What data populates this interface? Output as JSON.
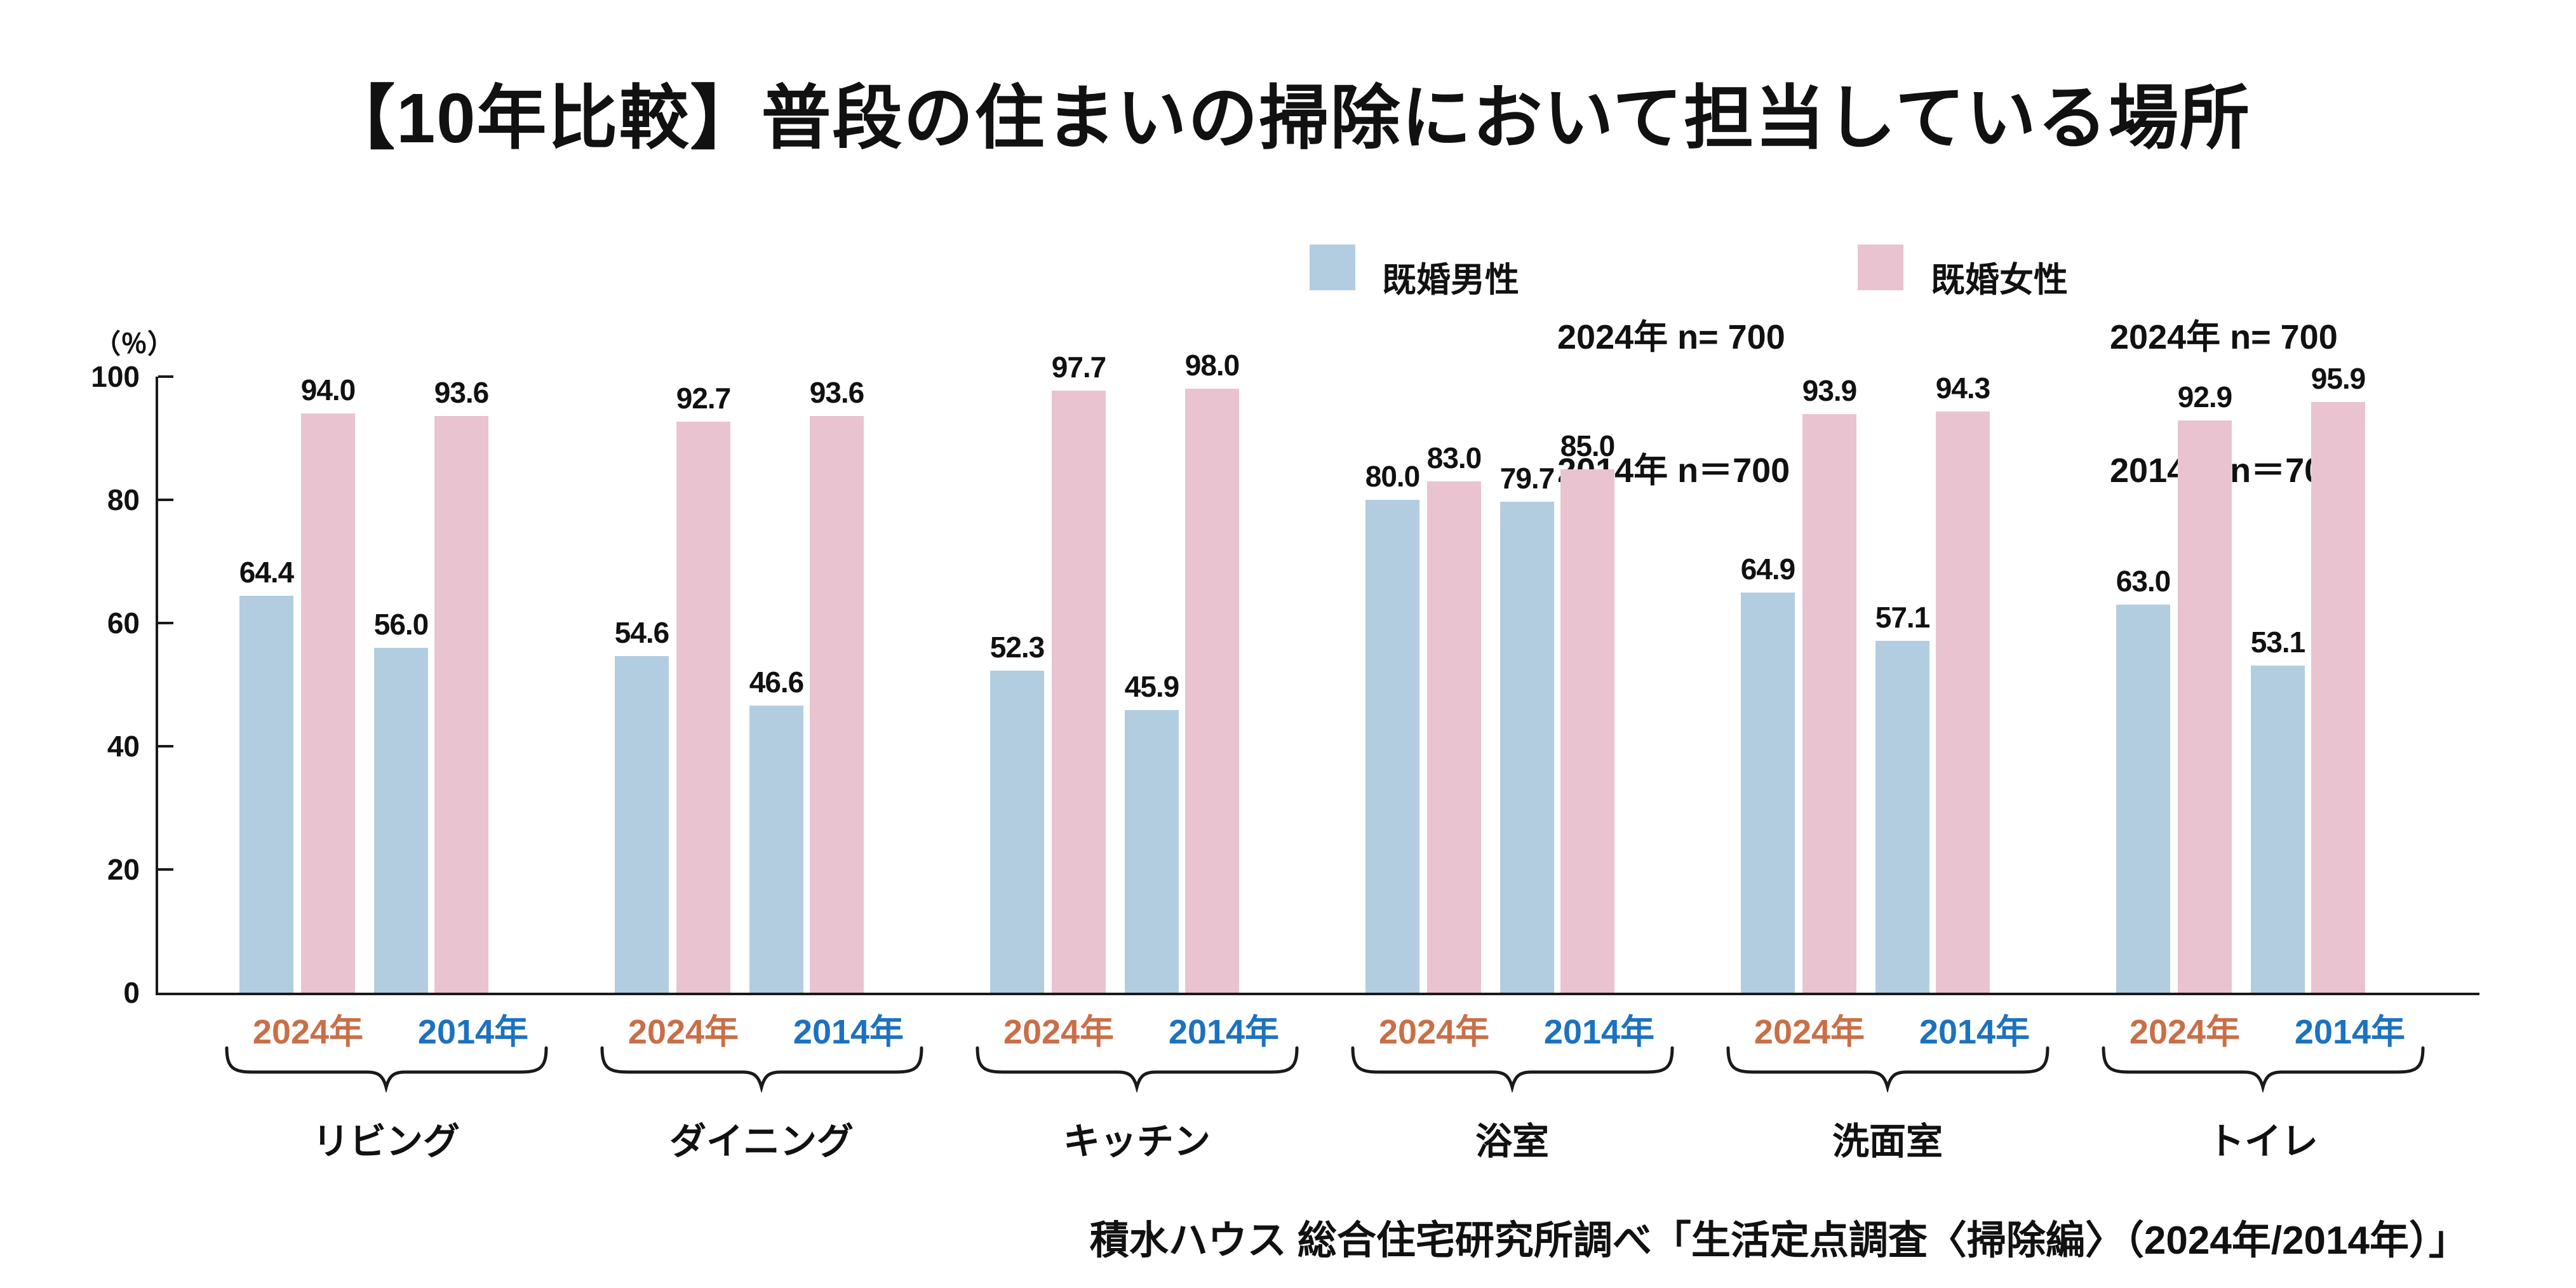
{
  "title": "【10年比較】普段の住まいの掃除において担当している場所",
  "legend": [
    {
      "name": "既婚男性",
      "color": "#b3cde0",
      "n_line1": "2024年 n= 700",
      "n_line2": "2014年 n＝700"
    },
    {
      "name": "既婚女性",
      "color": "#eac3d0",
      "n_line1": "2024年 n= 700",
      "n_line2": "2014年 n＝700"
    }
  ],
  "axis": {
    "unit": "（％）",
    "ticks": [
      100,
      80,
      60,
      40,
      20,
      0
    ],
    "max": 100
  },
  "group_label_colors": {
    "2024年": "#c96f48",
    "2014年": "#1c72bf"
  },
  "chart_data": {
    "type": "bar",
    "title": "【10年比較】普段の住まいの掃除において担当している場所",
    "categories": [
      "リビング",
      "ダイニング",
      "キッチン",
      "浴室",
      "洗面室",
      "トイレ"
    ],
    "group_labels": [
      "2024年",
      "2014年"
    ],
    "ylabel": "（％）",
    "ylim": [
      0,
      100
    ],
    "grid": false,
    "legend_position": "top-right",
    "series": [
      {
        "name": "既婚男性",
        "year": "2024年",
        "color": "#b3cde0",
        "values": [
          64.4,
          54.6,
          52.3,
          80.0,
          64.9,
          63.0
        ]
      },
      {
        "name": "既婚女性",
        "year": "2024年",
        "color": "#eac3d0",
        "values": [
          94.0,
          92.7,
          97.7,
          83.0,
          93.9,
          92.9
        ]
      },
      {
        "name": "既婚男性",
        "year": "2014年",
        "color": "#b3cde0",
        "values": [
          56.0,
          46.6,
          45.9,
          79.7,
          57.1,
          53.1
        ]
      },
      {
        "name": "既婚女性",
        "year": "2014年",
        "color": "#eac3d0",
        "values": [
          93.6,
          93.6,
          98.0,
          85.0,
          94.3,
          95.9
        ]
      }
    ]
  },
  "source": "積水ハウス 総合住宅研究所調べ「生活定点調査〈掃除編〉（2024年/2014年）」"
}
